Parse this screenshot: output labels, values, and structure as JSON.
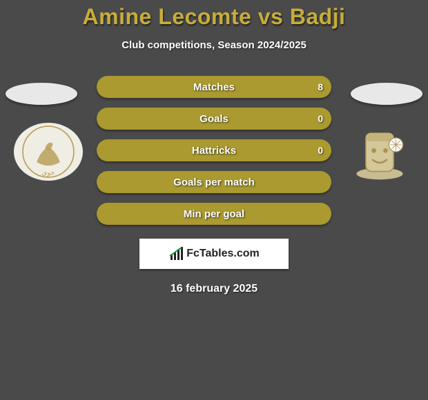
{
  "title": {
    "text": "Amine Lecomte vs Badji",
    "color_a": "#c7ad3a",
    "color_b": "#c7ad3a"
  },
  "subtitle": "Club competitions, Season 2024/2025",
  "background_color": "#4a4a4a",
  "date": "16 february 2025",
  "logo_text": "FcTables.com",
  "bars": {
    "fill_color": "#aa9a2f",
    "empty_color": "#aa9a2f",
    "items": [
      {
        "label": "Matches",
        "value_left": "",
        "value_right": "8"
      },
      {
        "label": "Goals",
        "value_left": "",
        "value_right": "0"
      },
      {
        "label": "Hattricks",
        "value_left": "",
        "value_right": "0"
      },
      {
        "label": "Goals per match",
        "value_left": "",
        "value_right": ""
      },
      {
        "label": "Min per goal",
        "value_left": "",
        "value_right": ""
      }
    ]
  },
  "avatars": {
    "ellipse_color": "#e8e8e8",
    "left_club_bg": "#f0ede4",
    "left_club_accent": "#b8a05a",
    "right_club_bg": "#d4c79a",
    "right_club_accent": "#a8924e"
  }
}
